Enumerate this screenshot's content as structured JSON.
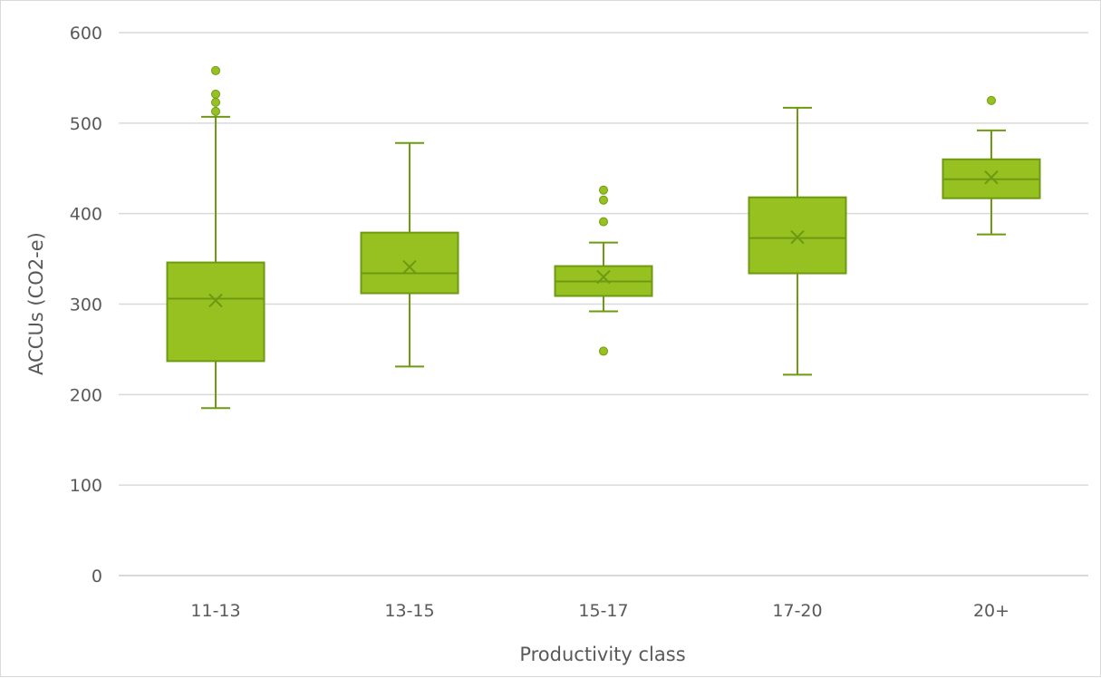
{
  "chart_data": {
    "type": "box",
    "xlabel": "Productivity class",
    "ylabel": "ACCUs (CO2-e)",
    "ylim": [
      0,
      600
    ],
    "yticks": [
      0,
      100,
      200,
      300,
      400,
      500,
      600
    ],
    "grid": true,
    "colors": {
      "fill": "#97c121",
      "stroke": "#6e9a12",
      "grid": "#d9d9d9",
      "text": "#595959"
    },
    "categories": [
      "11-13",
      "13-15",
      "15-17",
      "17-20",
      "20+"
    ],
    "boxes": [
      {
        "category": "11-13",
        "min": 185,
        "q1": 237,
        "median": 306,
        "q3": 346,
        "max": 507,
        "mean": 304,
        "outliers": [
          513,
          523,
          532,
          558
        ]
      },
      {
        "category": "13-15",
        "min": 231,
        "q1": 312,
        "median": 334,
        "q3": 379,
        "max": 478,
        "mean": 341,
        "outliers": []
      },
      {
        "category": "15-17",
        "min": 292,
        "q1": 309,
        "median": 325,
        "q3": 342,
        "max": 368,
        "mean": 330,
        "outliers": [
          248,
          391,
          415,
          426
        ]
      },
      {
        "category": "17-20",
        "min": 222,
        "q1": 334,
        "median": 373,
        "q3": 418,
        "max": 517,
        "mean": 374,
        "outliers": []
      },
      {
        "category": "20+",
        "min": 377,
        "q1": 417,
        "median": 438,
        "q3": 460,
        "max": 492,
        "mean": 440,
        "outliers": [
          525
        ]
      }
    ]
  }
}
